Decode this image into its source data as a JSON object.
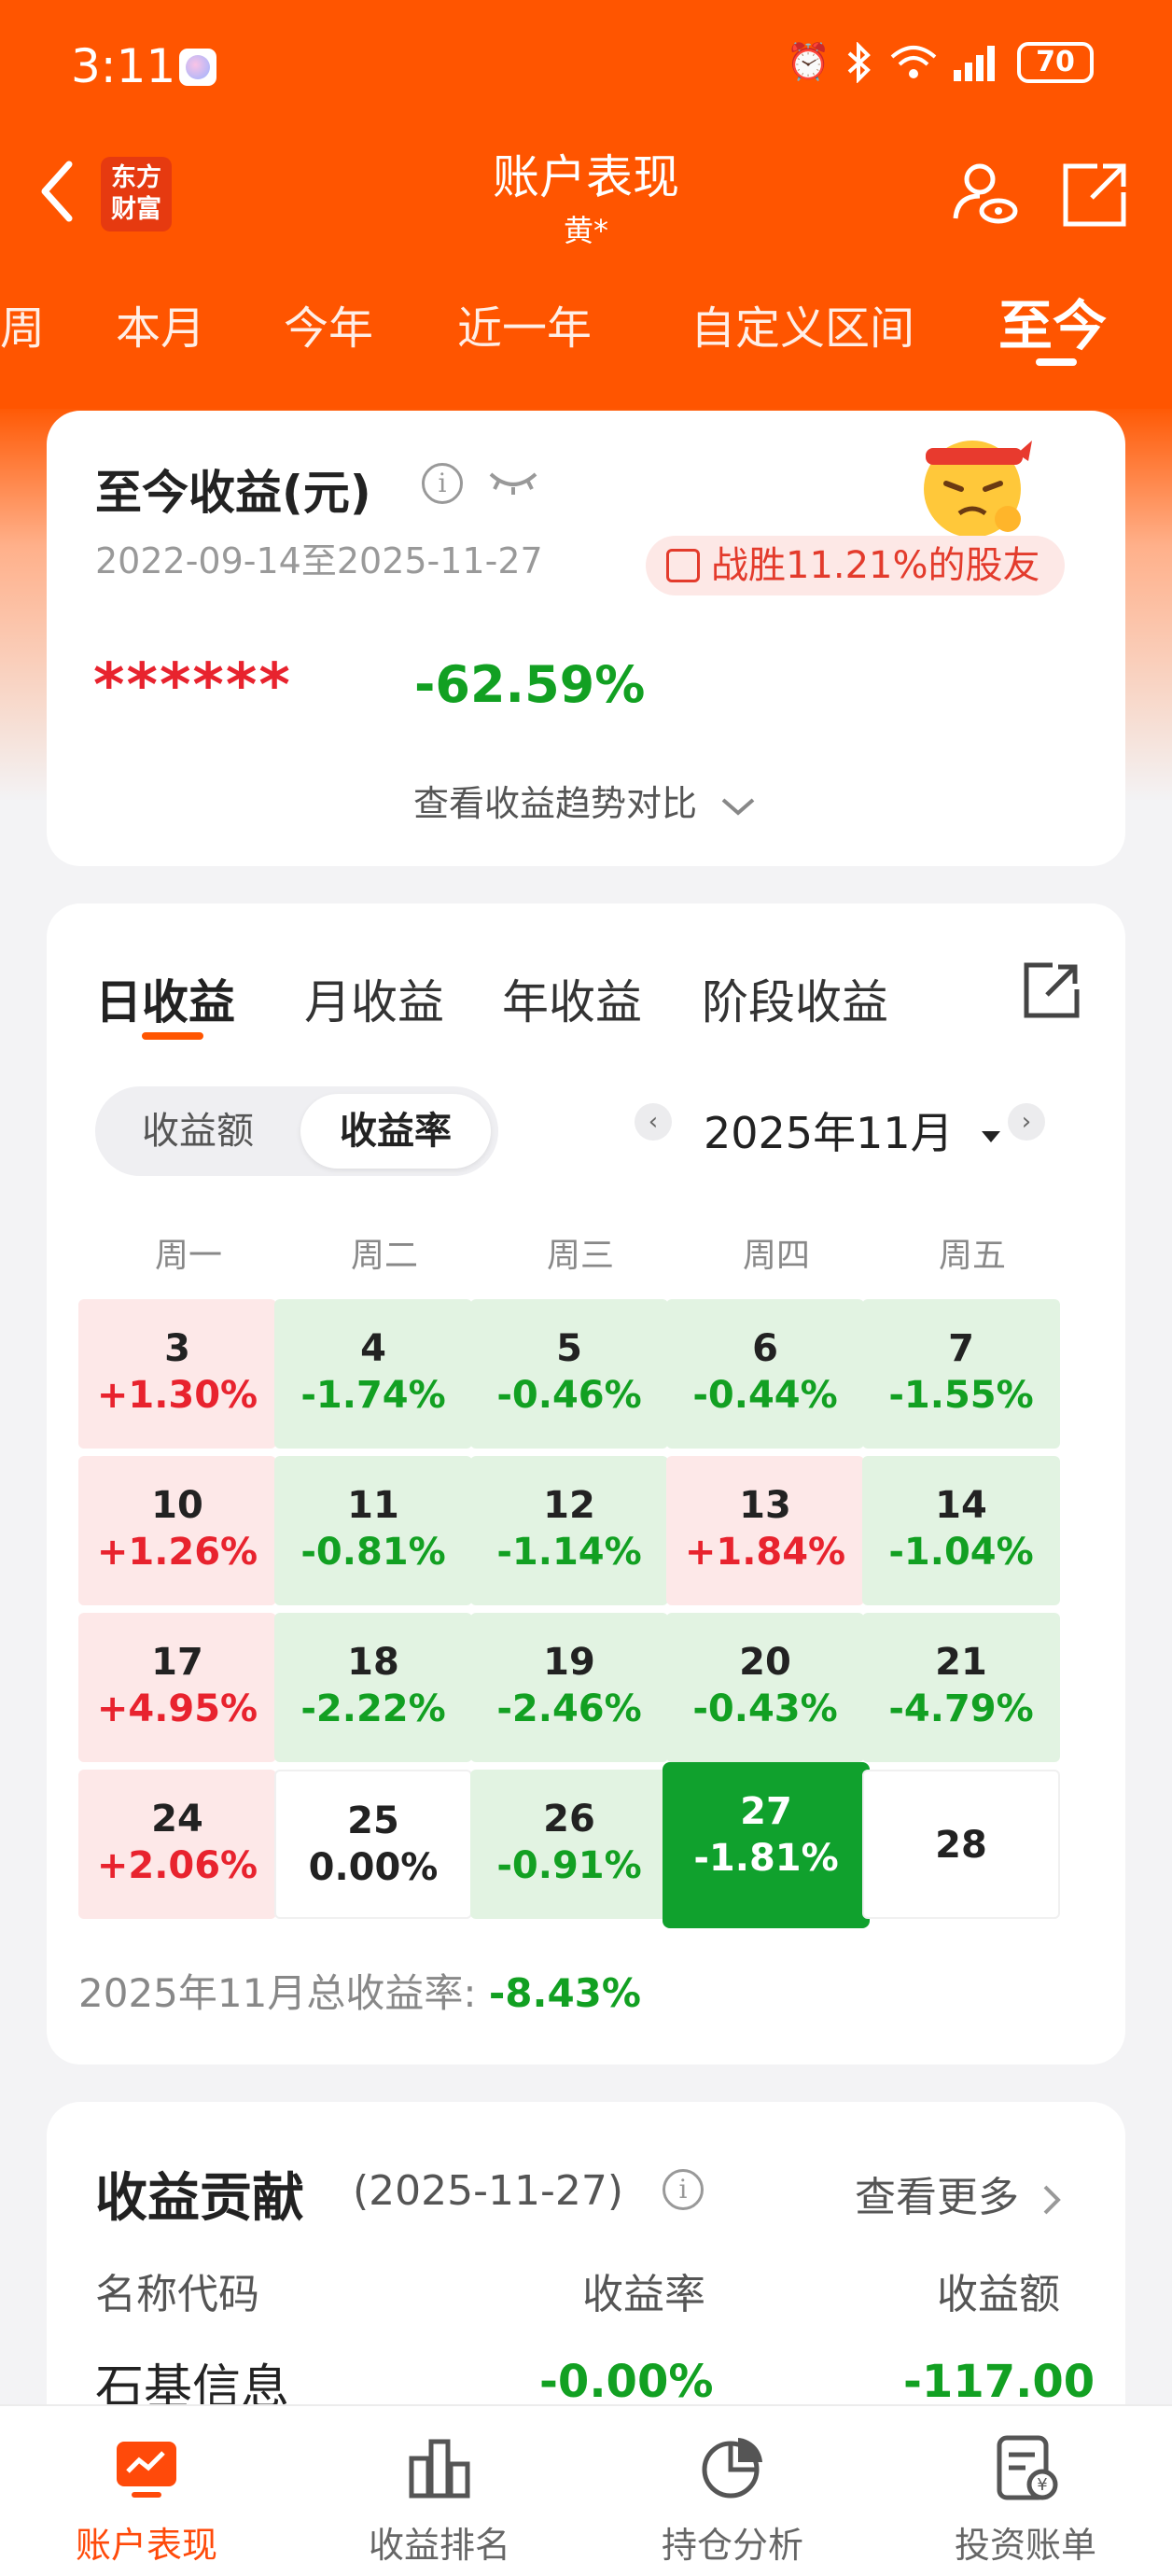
{
  "status": {
    "time": "3:11",
    "battery": "70"
  },
  "header": {
    "title": "账户表现",
    "subtitle": "黄*",
    "logo_line1": "东方",
    "logo_line2": "财富"
  },
  "period_tabs": [
    {
      "label": "周"
    },
    {
      "label": "本月"
    },
    {
      "label": "今年"
    },
    {
      "label": "近一年"
    },
    {
      "label": "自定义区间"
    },
    {
      "label": "至今",
      "active": true
    }
  ],
  "summary": {
    "title": "至今收益(元)",
    "date_range": "2022-09-14至2025-11-27",
    "beat_text": "战胜11.21%的股友",
    "hidden_amount": "******",
    "return_pct": "-62.59%",
    "trend_link": "查看收益趋势对比"
  },
  "returns": {
    "tabs": [
      {
        "label": "日收益",
        "active": true
      },
      {
        "label": "月收益"
      },
      {
        "label": "年收益"
      },
      {
        "label": "阶段收益"
      }
    ],
    "toggle": {
      "amount_label": "收益额",
      "rate_label": "收益率",
      "selected": "收益率"
    },
    "month_label": "2025年11月",
    "weekdays": [
      "周一",
      "周二",
      "周三",
      "周四",
      "周五"
    ],
    "calendar": [
      [
        {
          "day": "3",
          "pct": "+1.30%",
          "trend": "up"
        },
        {
          "day": "4",
          "pct": "-1.74%",
          "trend": "down"
        },
        {
          "day": "5",
          "pct": "-0.46%",
          "trend": "down"
        },
        {
          "day": "6",
          "pct": "-0.44%",
          "trend": "down"
        },
        {
          "day": "7",
          "pct": "-1.55%",
          "trend": "down"
        }
      ],
      [
        {
          "day": "10",
          "pct": "+1.26%",
          "trend": "up"
        },
        {
          "day": "11",
          "pct": "-0.81%",
          "trend": "down"
        },
        {
          "day": "12",
          "pct": "-1.14%",
          "trend": "down"
        },
        {
          "day": "13",
          "pct": "+1.84%",
          "trend": "up"
        },
        {
          "day": "14",
          "pct": "-1.04%",
          "trend": "down"
        }
      ],
      [
        {
          "day": "17",
          "pct": "+4.95%",
          "trend": "up"
        },
        {
          "day": "18",
          "pct": "-2.22%",
          "trend": "down"
        },
        {
          "day": "19",
          "pct": "-2.46%",
          "trend": "down"
        },
        {
          "day": "20",
          "pct": "-0.43%",
          "trend": "down"
        },
        {
          "day": "21",
          "pct": "-4.79%",
          "trend": "down"
        }
      ],
      [
        {
          "day": "24",
          "pct": "+2.06%",
          "trend": "up"
        },
        {
          "day": "25",
          "pct": "0.00%",
          "trend": "flat"
        },
        {
          "day": "26",
          "pct": "-0.91%",
          "trend": "down"
        },
        {
          "day": "27",
          "pct": "-1.81%",
          "trend": "today"
        },
        {
          "day": "28",
          "pct": "",
          "trend": "empty"
        }
      ]
    ],
    "total_label": "2025年11月总收益率: ",
    "total_value": "-8.43%"
  },
  "contribution": {
    "title": "收益贡献",
    "date": "(2025-11-27)",
    "more_label": "查看更多",
    "col_name": "名称代码",
    "col_rate": "收益率",
    "col_amount": "收益额",
    "row_name": "石基信息",
    "row_rate": "-0.00%",
    "row_amount": "-117.00"
  },
  "bottom_nav": [
    {
      "label": "账户表现",
      "icon": "chart-line-icon",
      "active": true
    },
    {
      "label": "收益排名",
      "icon": "bar-chart-icon"
    },
    {
      "label": "持仓分析",
      "icon": "pie-chart-icon"
    },
    {
      "label": "投资账单",
      "icon": "bill-icon"
    }
  ],
  "colors": {
    "brand": "#ff5500",
    "up": "#e8232e",
    "down": "#12a022",
    "today": "#10a12d"
  }
}
